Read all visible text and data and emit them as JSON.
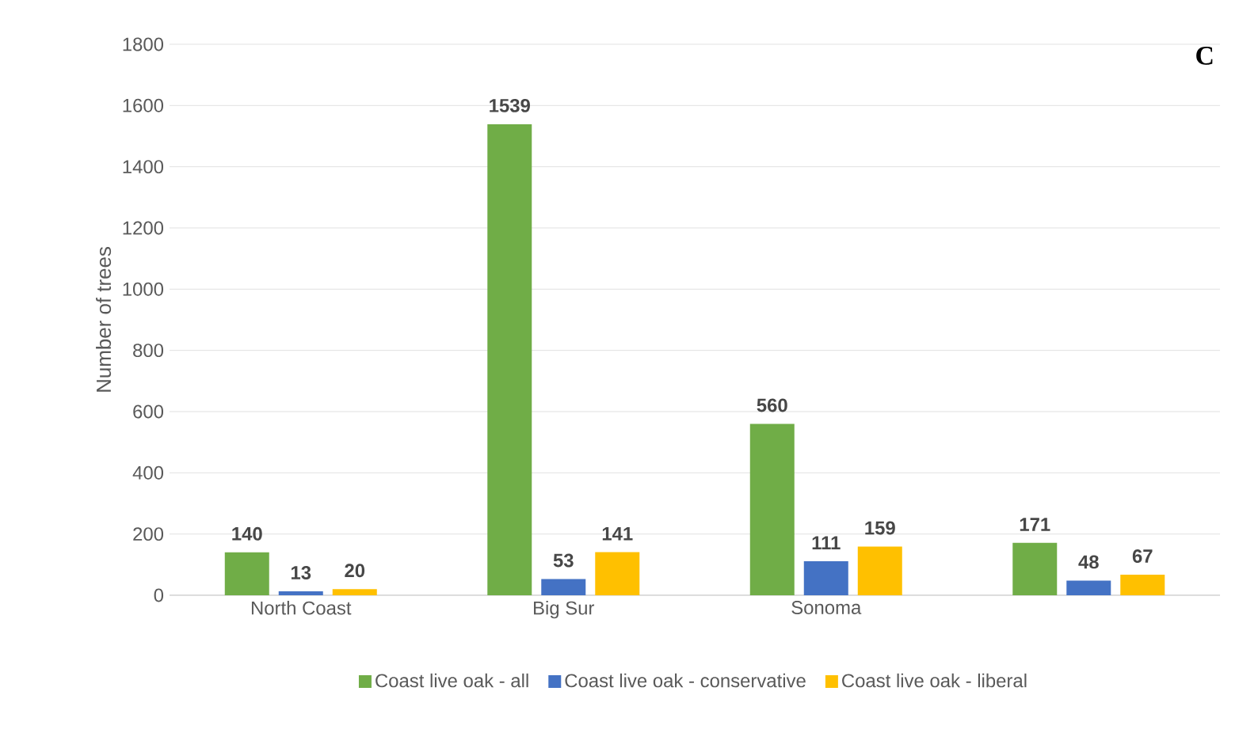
{
  "chart_data": {
    "type": "bar",
    "ylabel": "Number of trees",
    "categories": [
      "North Coast",
      "Big Sur",
      "Sonoma",
      null
    ],
    "series": [
      {
        "name": "Coast live oak - all",
        "color": "#70ad47",
        "values": [
          140,
          1539,
          560,
          171
        ]
      },
      {
        "name": "Coast live oak - conservative",
        "color": "#4472c4",
        "values": [
          13,
          53,
          111,
          48
        ]
      },
      {
        "name": "Coast live oak - liberal",
        "color": "#ffc000",
        "values": [
          20,
          141,
          159,
          67
        ]
      }
    ],
    "ylim": [
      0,
      1800
    ],
    "yticks": [
      0,
      200,
      400,
      600,
      800,
      1000,
      1200,
      1400,
      1600,
      1800
    ],
    "grid": "y",
    "legend": "bottom",
    "data_labels": true,
    "annotations": [
      "C"
    ]
  }
}
